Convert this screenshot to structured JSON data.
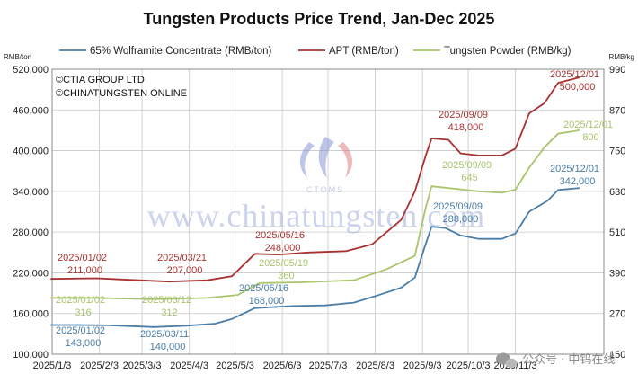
{
  "chart_data": {
    "type": "line",
    "title": "Tungsten Products Price Trend, Jan-Dec 2025",
    "y_unit_left": "RMB/ton",
    "y_unit_right": "RMB/kg",
    "ylim_left": [
      100000,
      520000
    ],
    "ylim_right": [
      150,
      990
    ],
    "yticks_left": [
      "100,000",
      "160,000",
      "220,000",
      "280,000",
      "340,000",
      "400,000",
      "460,000",
      "520,000"
    ],
    "yticks_right": [
      "150",
      "270",
      "390",
      "510",
      "630",
      "750",
      "870",
      "990"
    ],
    "x_tick_labels": [
      "2025/1/3",
      "2025/2/3",
      "2025/3/3",
      "2025/4/3",
      "2025/5/3",
      "2025/6/3",
      "2025/7/3",
      "2025/8/3",
      "2025/9/3",
      "2025/10/3",
      "2025/11/3"
    ],
    "grid": true,
    "legend_position": "top",
    "series": [
      {
        "name": "65% Wolframite Concentrate (RMB/ton)",
        "axis": "left",
        "color": "#4a7ea8",
        "points": [
          [
            "2025-01-02",
            143000
          ],
          [
            "2025-01-20",
            143000
          ],
          [
            "2025-02-10",
            142500
          ],
          [
            "2025-03-11",
            140000
          ],
          [
            "2025-04-01",
            142000
          ],
          [
            "2025-04-20",
            145000
          ],
          [
            "2025-05-01",
            152000
          ],
          [
            "2025-05-16",
            168000
          ],
          [
            "2025-06-10",
            171000
          ],
          [
            "2025-07-01",
            172000
          ],
          [
            "2025-07-20",
            176000
          ],
          [
            "2025-08-05",
            187000
          ],
          [
            "2025-08-20",
            198000
          ],
          [
            "2025-08-29",
            213000
          ],
          [
            "2025-09-05",
            262000
          ],
          [
            "2025-09-09",
            288000
          ],
          [
            "2025-09-18",
            286000
          ],
          [
            "2025-09-28",
            275000
          ],
          [
            "2025-10-10",
            270000
          ],
          [
            "2025-10-25",
            270000
          ],
          [
            "2025-11-03",
            278000
          ],
          [
            "2025-11-12",
            310000
          ],
          [
            "2025-11-24",
            326000
          ],
          [
            "2025-12-01",
            342000
          ],
          [
            "2025-12-15",
            345000
          ]
        ]
      },
      {
        "name": "APT (RMB/ton)",
        "axis": "left",
        "color": "#a83232",
        "points": [
          [
            "2025-01-02",
            211000
          ],
          [
            "2025-02-01",
            212000
          ],
          [
            "2025-03-01",
            209000
          ],
          [
            "2025-03-21",
            207000
          ],
          [
            "2025-04-15",
            209000
          ],
          [
            "2025-05-01",
            215000
          ],
          [
            "2025-05-16",
            248000
          ],
          [
            "2025-06-01",
            247000
          ],
          [
            "2025-06-20",
            250000
          ],
          [
            "2025-07-15",
            252000
          ],
          [
            "2025-08-01",
            262000
          ],
          [
            "2025-08-20",
            298000
          ],
          [
            "2025-08-29",
            340000
          ],
          [
            "2025-09-05",
            392000
          ],
          [
            "2025-09-09",
            418000
          ],
          [
            "2025-09-20",
            416000
          ],
          [
            "2025-09-28",
            396000
          ],
          [
            "2025-10-10",
            393000
          ],
          [
            "2025-10-25",
            393000
          ],
          [
            "2025-11-03",
            403000
          ],
          [
            "2025-11-12",
            455000
          ],
          [
            "2025-11-22",
            470000
          ],
          [
            "2025-12-01",
            500000
          ],
          [
            "2025-12-15",
            508000
          ]
        ]
      },
      {
        "name": "Tungsten Powder (RMB/kg)",
        "axis": "right",
        "color": "#a9c46c",
        "points": [
          [
            "2025-01-02",
            316
          ],
          [
            "2025-02-01",
            316
          ],
          [
            "2025-03-12",
            312
          ],
          [
            "2025-04-15",
            316
          ],
          [
            "2025-05-05",
            325
          ],
          [
            "2025-05-19",
            360
          ],
          [
            "2025-06-15",
            362
          ],
          [
            "2025-07-20",
            368
          ],
          [
            "2025-08-10",
            400
          ],
          [
            "2025-08-29",
            440
          ],
          [
            "2025-09-05",
            580
          ],
          [
            "2025-09-09",
            645
          ],
          [
            "2025-09-20",
            640
          ],
          [
            "2025-10-10",
            630
          ],
          [
            "2025-10-25",
            626
          ],
          [
            "2025-11-03",
            635
          ],
          [
            "2025-11-12",
            700
          ],
          [
            "2025-11-22",
            760
          ],
          [
            "2025-12-01",
            800
          ],
          [
            "2025-12-15",
            810
          ]
        ]
      }
    ],
    "annotations": [
      {
        "label": "2025/01/02",
        "value": "211,000",
        "series": 1
      },
      {
        "label": "2025/03/21",
        "value": "207,000",
        "series": 1
      },
      {
        "label": "2025/05/16",
        "value": "248,000",
        "series": 1
      },
      {
        "label": "2025/09/09",
        "value": "418,000",
        "series": 1
      },
      {
        "label": "2025/12/01",
        "value": "500,000",
        "series": 1
      },
      {
        "label": "2025/01/02",
        "value": "316",
        "series": 2
      },
      {
        "label": "2025/03/12",
        "value": "312",
        "series": 2
      },
      {
        "label": "2025/05/19",
        "value": "360",
        "series": 2
      },
      {
        "label": "2025/09/09",
        "value": "645",
        "series": 2
      },
      {
        "label": "2025/12/01",
        "value": "800",
        "series": 2
      },
      {
        "label": "2025/01/02",
        "value": "143,000",
        "series": 0
      },
      {
        "label": "2025/03/11",
        "value": "140,000",
        "series": 0
      },
      {
        "label": "2025/05/16",
        "value": "168,000",
        "series": 0
      },
      {
        "label": "2025/09/09",
        "value": "288,000",
        "series": 0
      },
      {
        "label": "2025/12/01",
        "value": "342,000",
        "series": 0
      }
    ]
  },
  "copyright": [
    "©CTIA GROUP LTD",
    "©CHINATUNGSTEN ONLINE"
  ],
  "watermark": {
    "text": "www.chinatungsten.com",
    "subtext": "CTOMS"
  },
  "brand": {
    "text": "公众号 · 中钨在线",
    "icon": "wechat-icon"
  }
}
